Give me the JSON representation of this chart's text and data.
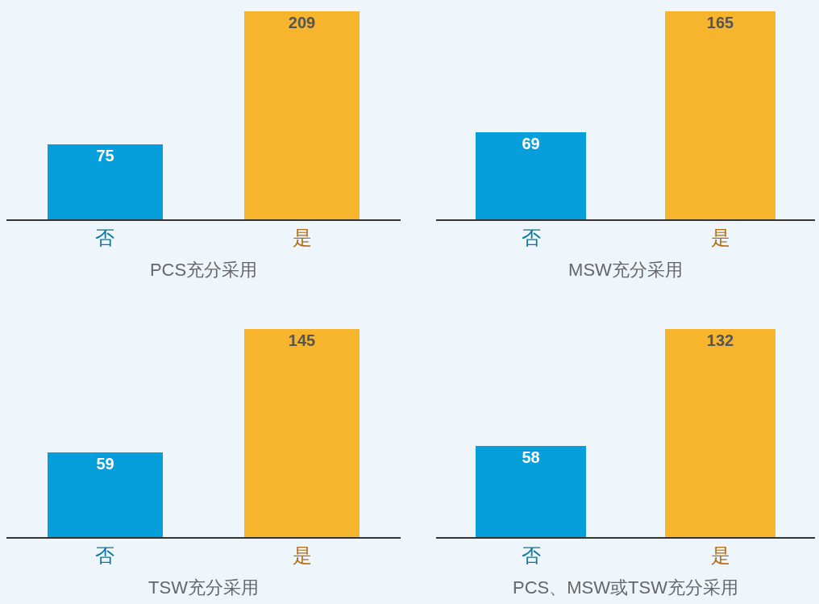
{
  "chart_data": [
    {
      "type": "bar",
      "xlabel": "PCS充分采用",
      "categories": [
        "否",
        "是"
      ],
      "values": [
        75,
        209
      ],
      "colors": [
        "#069fdb",
        "#f7b52e"
      ],
      "data_labels": true,
      "grid": false,
      "legend": false,
      "tick_labels": "x"
    },
    {
      "type": "bar",
      "xlabel": "MSW充分采用",
      "categories": [
        "否",
        "是"
      ],
      "values": [
        69,
        165
      ],
      "colors": [
        "#069fdb",
        "#f7b52e"
      ],
      "data_labels": true,
      "grid": false,
      "legend": false,
      "tick_labels": "x"
    },
    {
      "type": "bar",
      "xlabel": "TSW充分采用",
      "categories": [
        "否",
        "是"
      ],
      "values": [
        59,
        145
      ],
      "colors": [
        "#069fdb",
        "#f7b52e"
      ],
      "data_labels": true,
      "grid": false,
      "legend": false,
      "tick_labels": "x"
    },
    {
      "type": "bar",
      "xlabel": "PCS、MSW或TSW充分采用",
      "categories": [
        "否",
        "是"
      ],
      "values": [
        58,
        132
      ],
      "colors": [
        "#069fdb",
        "#f7b52e"
      ],
      "data_labels": true,
      "grid": false,
      "legend": false,
      "tick_labels": "x"
    }
  ]
}
